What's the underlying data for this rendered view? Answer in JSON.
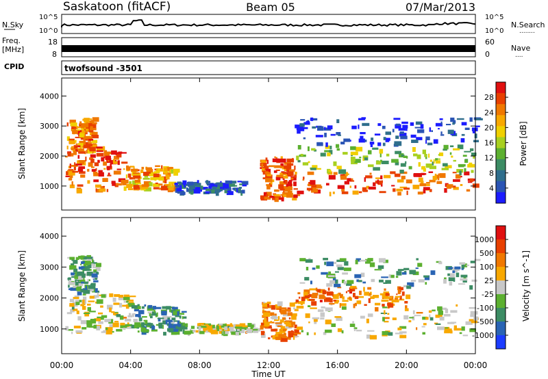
{
  "header": {
    "station": "Saskatoon (fitACF)",
    "beam": "Beam 05",
    "date": "07/Mar/2013"
  },
  "top_panels": {
    "nsky_label": "N.Sky",
    "nsearch_label": "N.Search",
    "nsearch_dots": "........",
    "freq_label_1": "Freq.",
    "freq_label_2": "[MHz]",
    "nave_label": "Nave",
    "nave_dots": "....",
    "cpid_label": "CPID",
    "cpid_value": "twofsound  -3501",
    "nsky_ticks": [
      "10^5",
      "10^0"
    ],
    "nsearch_ticks": [
      "10^5",
      "10^0"
    ],
    "freq_ticks": [
      "18",
      "8"
    ],
    "nave_ticks": [
      "60",
      "0"
    ]
  },
  "chart_data": [
    {
      "type": "heatmap",
      "name": "power",
      "ylabel": "Slant Range [km]",
      "yticks": [
        "1000",
        "2000",
        "3000",
        "4000"
      ],
      "ylim": [
        200,
        4600
      ],
      "xlim": [
        0,
        24
      ],
      "colorbar": {
        "label": "Power [dB]",
        "ticks": [
          "28",
          "24",
          "20",
          "16",
          "12",
          "8",
          "4"
        ],
        "colors": [
          "#1c1cff",
          "#2a54b4",
          "#2f6e8c",
          "#3c8c64",
          "#5cb030",
          "#a8d020",
          "#f0d000",
          "#f8a800",
          "#f07800",
          "#e84000",
          "#e01010"
        ]
      },
      "regions": [
        {
          "t": [
            0.3,
            1.8
          ],
          "r": [
            2200,
            3300
          ],
          "level": 0.75
        },
        {
          "t": [
            0.2,
            3.5
          ],
          "r": [
            900,
            2400
          ],
          "level": 0.85
        },
        {
          "t": [
            3.5,
            6.5
          ],
          "r": [
            900,
            1700
          ],
          "level": 0.7
        },
        {
          "t": [
            6.5,
            10.5
          ],
          "r": [
            800,
            1200
          ],
          "level": 0.15
        },
        {
          "t": [
            11.5,
            13.5
          ],
          "r": [
            600,
            2000
          ],
          "level": 0.85
        },
        {
          "t": [
            13.5,
            24.0
          ],
          "r": [
            800,
            1500
          ],
          "level": 0.85
        },
        {
          "t": [
            13.5,
            24.0
          ],
          "r": [
            1500,
            2400
          ],
          "level": 0.45
        },
        {
          "t": [
            13.5,
            24.0
          ],
          "r": [
            2400,
            3300
          ],
          "level": 0.1
        }
      ]
    },
    {
      "type": "heatmap",
      "name": "velocity",
      "ylabel": "Slant Range [km]",
      "xlabel": "Time UT",
      "xticks": [
        "00:00",
        "04:00",
        "08:00",
        "12:00",
        "16:00",
        "20:00",
        "00:00"
      ],
      "yticks": [
        "1000",
        "2000",
        "3000",
        "4000"
      ],
      "ylim": [
        200,
        4600
      ],
      "xlim": [
        0,
        24
      ],
      "colorbar": {
        "label": "Velocity [m s^-1]",
        "ticks": [
          "1000",
          "500",
          "100",
          "25",
          "-25",
          "-100",
          "-500",
          "-1000"
        ],
        "colors": [
          "#1c3cff",
          "#2a64b4",
          "#3c8c64",
          "#5cb030",
          "#c8c8c8",
          "#f8a800",
          "#f07800",
          "#e84000",
          "#e01010"
        ]
      },
      "regions": [
        {
          "t": [
            0.3,
            2.0
          ],
          "r": [
            2200,
            3400
          ],
          "level": 0.35
        },
        {
          "t": [
            0.2,
            4.0
          ],
          "r": [
            900,
            2200
          ],
          "level": 0.5
        },
        {
          "t": [
            4.0,
            7.0
          ],
          "r": [
            900,
            1800
          ],
          "level": 0.3
        },
        {
          "t": [
            7.0,
            11.5
          ],
          "r": [
            900,
            1200
          ],
          "level": 0.5
        },
        {
          "t": [
            11.5,
            13.5
          ],
          "r": [
            700,
            1900
          ],
          "level": 0.7
        },
        {
          "t": [
            13.5,
            24.0
          ],
          "r": [
            800,
            1800
          ],
          "level": 0.5
        },
        {
          "t": [
            13.5,
            20.0
          ],
          "r": [
            1800,
            2400
          ],
          "level": 0.72
        },
        {
          "t": [
            13.5,
            24.0
          ],
          "r": [
            2400,
            3300
          ],
          "level": 0.35
        }
      ]
    }
  ]
}
